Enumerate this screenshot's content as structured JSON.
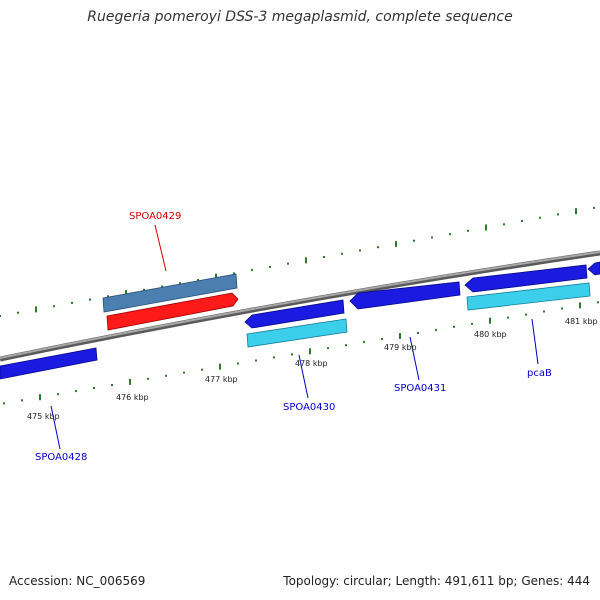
{
  "title": "Ruegeria pomeroyi DSS-3 megaplasmid, complete sequence",
  "footer": {
    "accession": "Accession: NC_006569",
    "topology": "Topology: circular; Length: 491,611 bp; Genes: 444"
  },
  "colors": {
    "backbone": "#888888",
    "cds_forward": "#1a1ae0",
    "cds_highlight": "#ff1a1a",
    "gene_feature": "#3ccfec",
    "gene_highlight": "#4a7fb0",
    "label_default": "#0000cc",
    "label_highlight": "#d40000",
    "ticks": "#2d7a2d"
  },
  "tick_labels": [
    "475 kbp",
    "476 kbp",
    "477 kbp",
    "478 kbp",
    "479 kbp",
    "480 kbp",
    "481 kbp"
  ],
  "gene_labels": [
    {
      "text": "SPOA0429",
      "highlight": true
    },
    {
      "text": "SPOA0428",
      "highlight": false
    },
    {
      "text": "SPOA0430",
      "highlight": false
    },
    {
      "text": "SPOA0431",
      "highlight": false
    },
    {
      "text": "pcaB",
      "highlight": false
    }
  ]
}
